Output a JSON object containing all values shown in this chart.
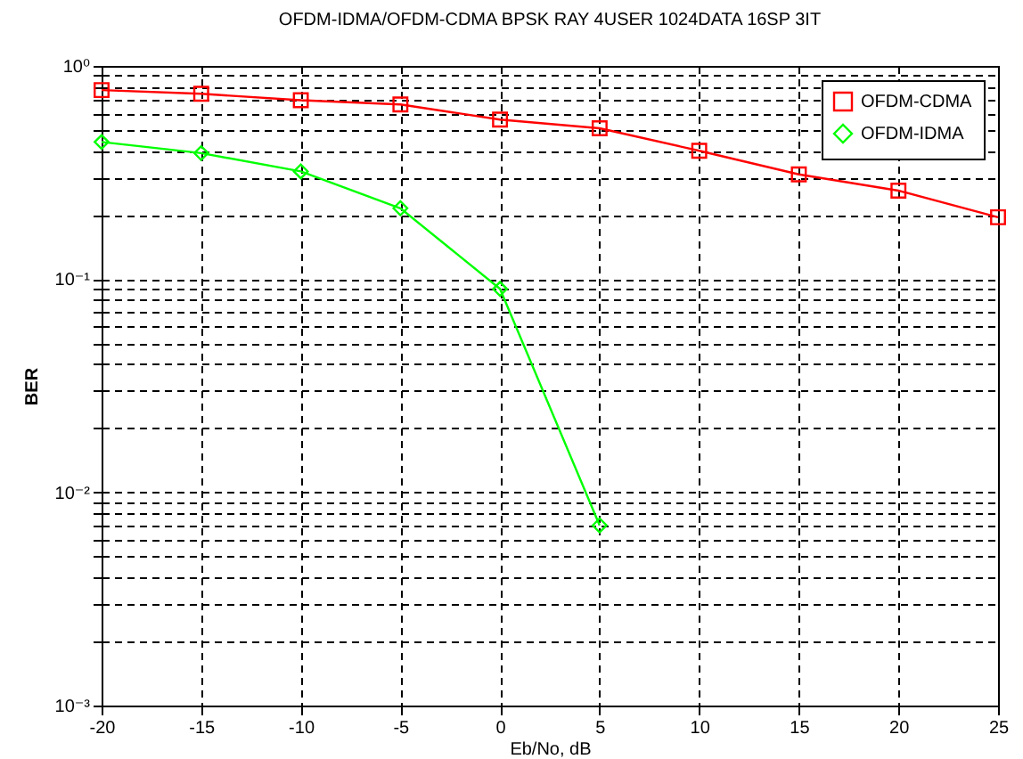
{
  "chart_data": {
    "type": "line",
    "title": "OFDM-IDMA/OFDM-CDMA BPSK RAY 4USER 1024DATA 16SP 3IT",
    "xlabel": "Eb/No, dB",
    "ylabel": "BER",
    "x": [
      -20,
      -15,
      -10,
      -5,
      0,
      5,
      10,
      15,
      20,
      25
    ],
    "series": [
      {
        "name": "OFDM-CDMA",
        "color": "#ff0000",
        "marker": "square",
        "values": [
          0.77,
          0.74,
          0.69,
          0.66,
          0.56,
          0.51,
          0.4,
          0.31,
          0.26,
          0.195
        ]
      },
      {
        "name": "OFDM-IDMA",
        "color": "#00ff00",
        "marker": "diamond",
        "values": [
          0.44,
          0.39,
          0.32,
          0.215,
          0.09,
          0.007,
          null,
          null,
          null,
          null
        ]
      }
    ],
    "log": "y",
    "xlim": [
      -20,
      25
    ],
    "xticks": [
      -20,
      -15,
      -10,
      -5,
      0,
      5,
      10,
      15,
      20,
      25
    ],
    "ylim": [
      0.001,
      1
    ],
    "yticks": [
      {
        "value": 0.001,
        "label": "10⁻³"
      },
      {
        "value": 0.002,
        "label": null
      },
      {
        "value": 0.003,
        "label": null
      },
      {
        "value": 0.004,
        "label": null
      },
      {
        "value": 0.005,
        "label": null
      },
      {
        "value": 0.006,
        "label": null
      },
      {
        "value": 0.007,
        "label": null
      },
      {
        "value": 0.008,
        "label": null
      },
      {
        "value": 0.009,
        "label": null
      },
      {
        "value": 0.01,
        "label": "10⁻²"
      },
      {
        "value": 0.02,
        "label": null
      },
      {
        "value": 0.03,
        "label": null
      },
      {
        "value": 0.04,
        "label": null
      },
      {
        "value": 0.05,
        "label": null
      },
      {
        "value": 0.06,
        "label": null
      },
      {
        "value": 0.07,
        "label": null
      },
      {
        "value": 0.08,
        "label": null
      },
      {
        "value": 0.09,
        "label": null
      },
      {
        "value": 0.1,
        "label": "10⁻¹"
      },
      {
        "value": 0.2,
        "label": null
      },
      {
        "value": 0.3,
        "label": null
      },
      {
        "value": 0.4,
        "label": null
      },
      {
        "value": 0.5,
        "label": null
      },
      {
        "value": 0.6,
        "label": null
      },
      {
        "value": 0.7,
        "label": null
      },
      {
        "value": 0.8,
        "label": null
      },
      {
        "value": 0.9,
        "label": null
      },
      {
        "value": 1,
        "label": "10⁰"
      }
    ],
    "grid": true,
    "legend": "top right",
    "line_style": "solid"
  }
}
